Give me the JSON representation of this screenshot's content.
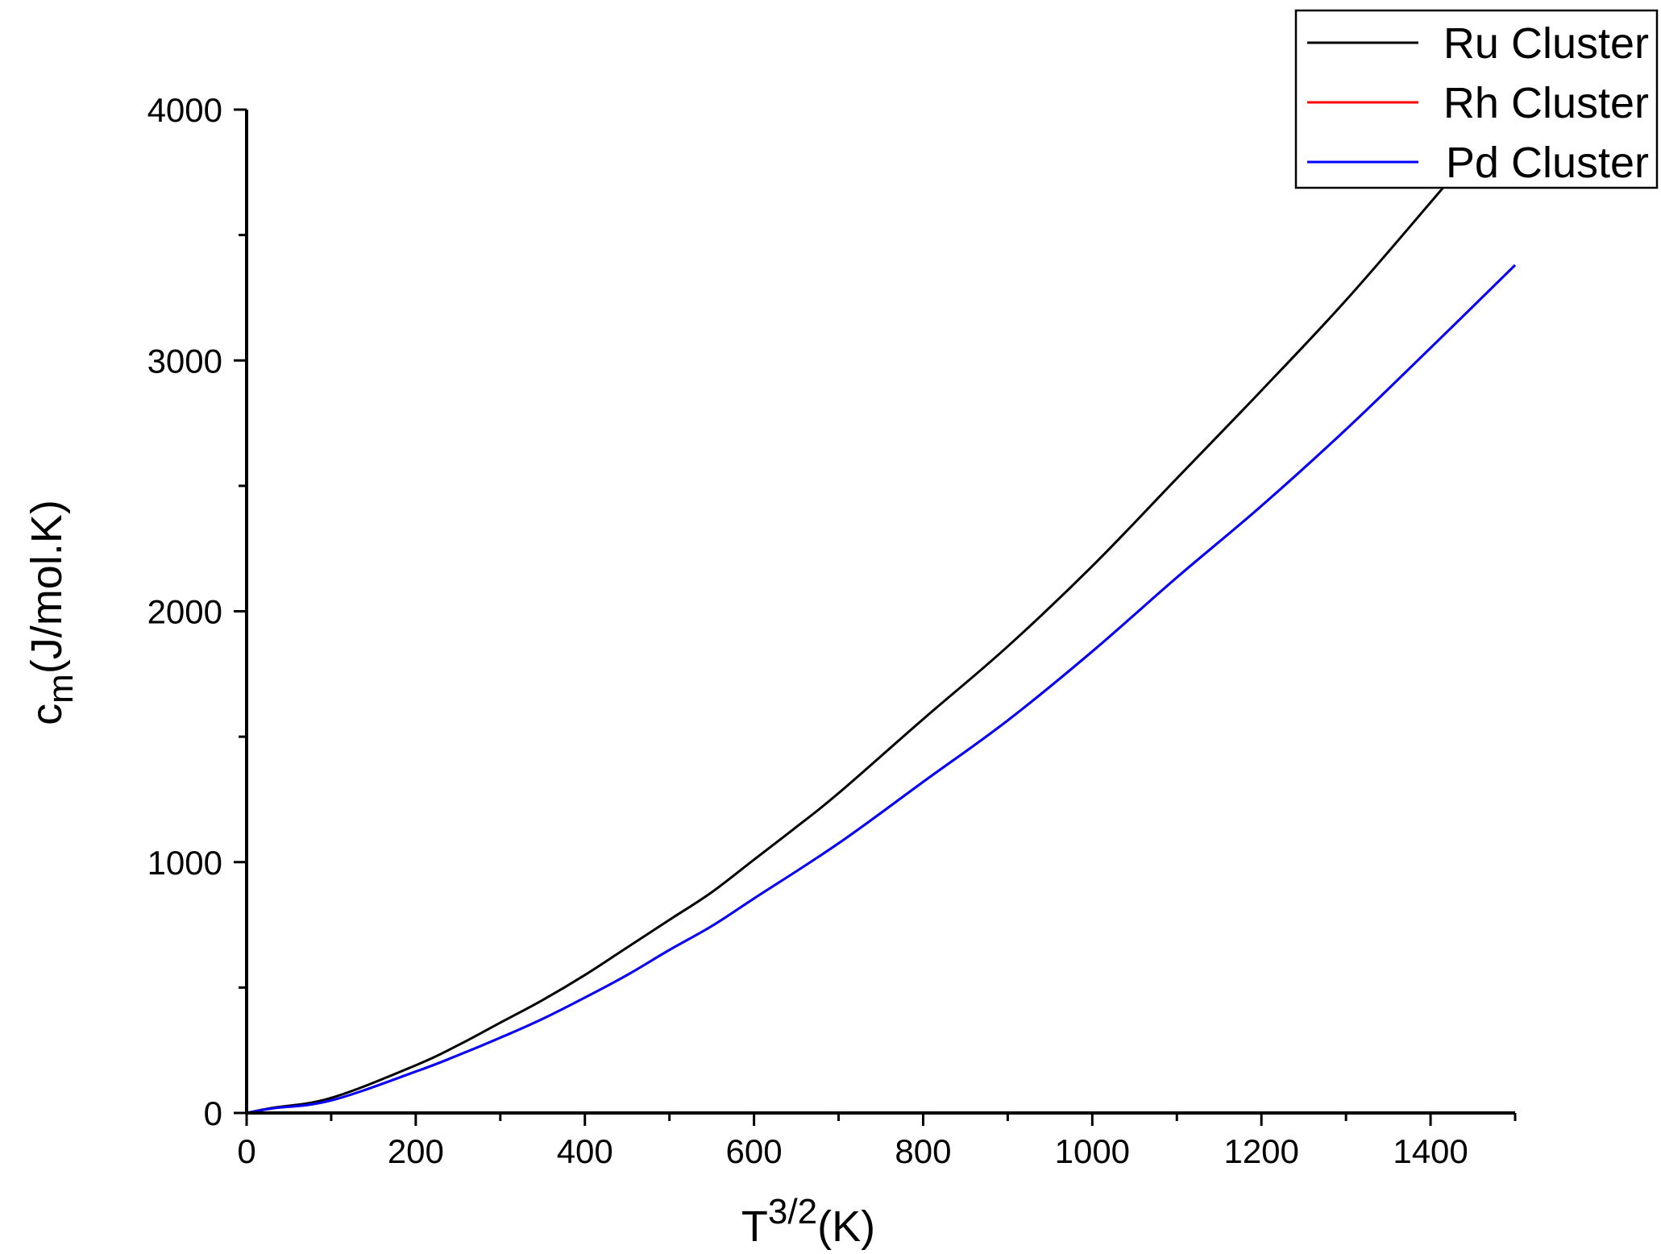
{
  "chart_data": {
    "type": "line",
    "xlabel": {
      "main": "T",
      "sup": "3/2",
      "suffix": "(K)"
    },
    "ylabel": {
      "main": "c",
      "sub": "m",
      "suffix": "(J/mol.K)"
    },
    "xlim": [
      0,
      1500
    ],
    "ylim": [
      0,
      4000
    ],
    "x_ticks": [
      0,
      200,
      400,
      600,
      800,
      1000,
      1200,
      1400
    ],
    "y_ticks": [
      0,
      1000,
      2000,
      3000,
      4000
    ],
    "x_tick_labels": [
      "0",
      "200",
      "400",
      "600",
      "800",
      "1000",
      "1200",
      "1400"
    ],
    "y_tick_labels": [
      "0",
      "1000",
      "2000",
      "3000",
      "4000"
    ],
    "x_minor_step": 100,
    "y_minor_step": 500,
    "grid": false,
    "legend": {
      "position": "top-right",
      "entries": [
        "Ru Cluster",
        "Rh Cluster",
        "Pd Cluster"
      ]
    },
    "series": [
      {
        "name": "Ru Cluster",
        "color": "#000000",
        "x": [
          0,
          30,
          100,
          200,
          250,
          300,
          350,
          400,
          450,
          500,
          550,
          600,
          650,
          700,
          800,
          900,
          1000,
          1100,
          1200,
          1300,
          1400,
          1450
        ],
        "y": [
          0,
          20,
          60,
          190,
          270,
          360,
          450,
          550,
          660,
          770,
          880,
          1010,
          1140,
          1275,
          1570,
          1860,
          2180,
          2530,
          2880,
          3240,
          3630,
          3830
        ]
      },
      {
        "name": "Rh Cluster",
        "color": "#ff0000",
        "x": [
          0,
          30,
          100,
          200,
          250,
          300,
          350,
          400,
          450,
          500,
          550,
          600,
          700,
          800,
          900,
          1000,
          1100,
          1200,
          1300,
          1400,
          1500
        ],
        "y": [
          0,
          18,
          50,
          165,
          230,
          300,
          375,
          460,
          550,
          650,
          745,
          855,
          1075,
          1320,
          1565,
          1840,
          2135,
          2420,
          2725,
          3050,
          3380
        ]
      },
      {
        "name": "Pd Cluster",
        "color": "#0000ff",
        "x": [
          0,
          30,
          100,
          200,
          250,
          300,
          350,
          400,
          450,
          500,
          550,
          600,
          700,
          800,
          900,
          1000,
          1100,
          1200,
          1300,
          1400,
          1500
        ],
        "y": [
          0,
          18,
          50,
          165,
          230,
          300,
          375,
          460,
          550,
          650,
          745,
          855,
          1075,
          1320,
          1565,
          1840,
          2135,
          2420,
          2725,
          3050,
          3380
        ]
      }
    ]
  }
}
